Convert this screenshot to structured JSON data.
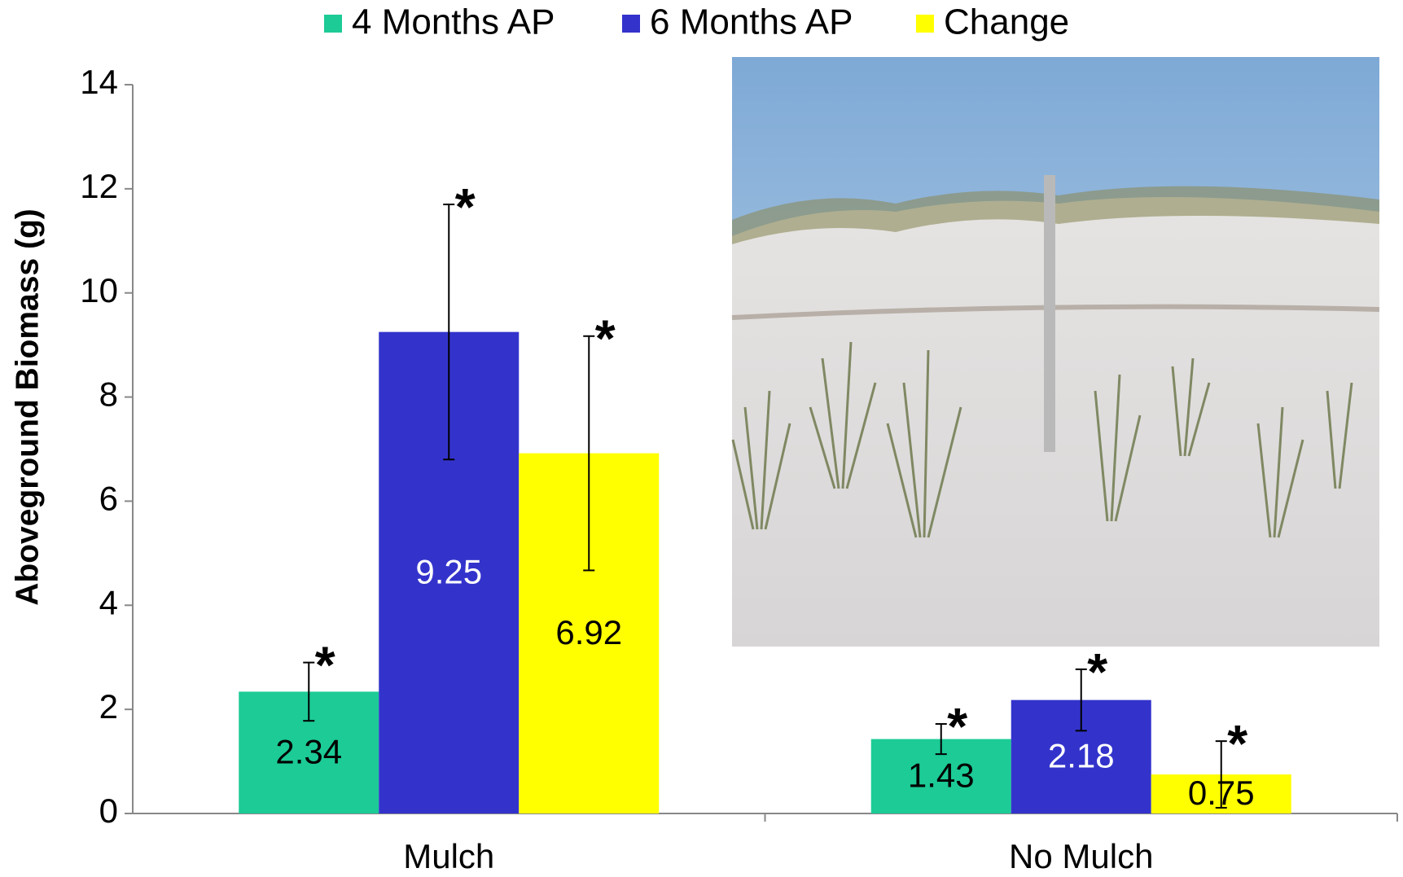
{
  "chart_data": {
    "type": "bar",
    "y_label": "Aboveground Biomass (g)",
    "categories": [
      "Mulch",
      "No Mulch"
    ],
    "series": [
      {
        "name": "4 Months AP",
        "color": "#1ccb96",
        "label_color": "#000000",
        "values": [
          2.34,
          1.43
        ],
        "errors": [
          0.56,
          0.29
        ],
        "significance": [
          "*",
          "*"
        ]
      },
      {
        "name": "6 Months AP",
        "color": "#3333cc",
        "label_color": "#ffffff",
        "values": [
          9.25,
          2.18
        ],
        "errors": [
          2.45,
          0.59
        ],
        "significance": [
          "*",
          "*"
        ]
      },
      {
        "name": "Change",
        "color": "#ffff00",
        "label_color": "#000000",
        "values": [
          6.92,
          0.75
        ],
        "errors": [
          2.25,
          0.64
        ],
        "significance": [
          "*",
          "*"
        ]
      }
    ],
    "ylim": [
      0,
      14
    ],
    "yticks": [
      0,
      2,
      4,
      6,
      8,
      10,
      12,
      14
    ],
    "grid": false,
    "legend": "top"
  }
}
